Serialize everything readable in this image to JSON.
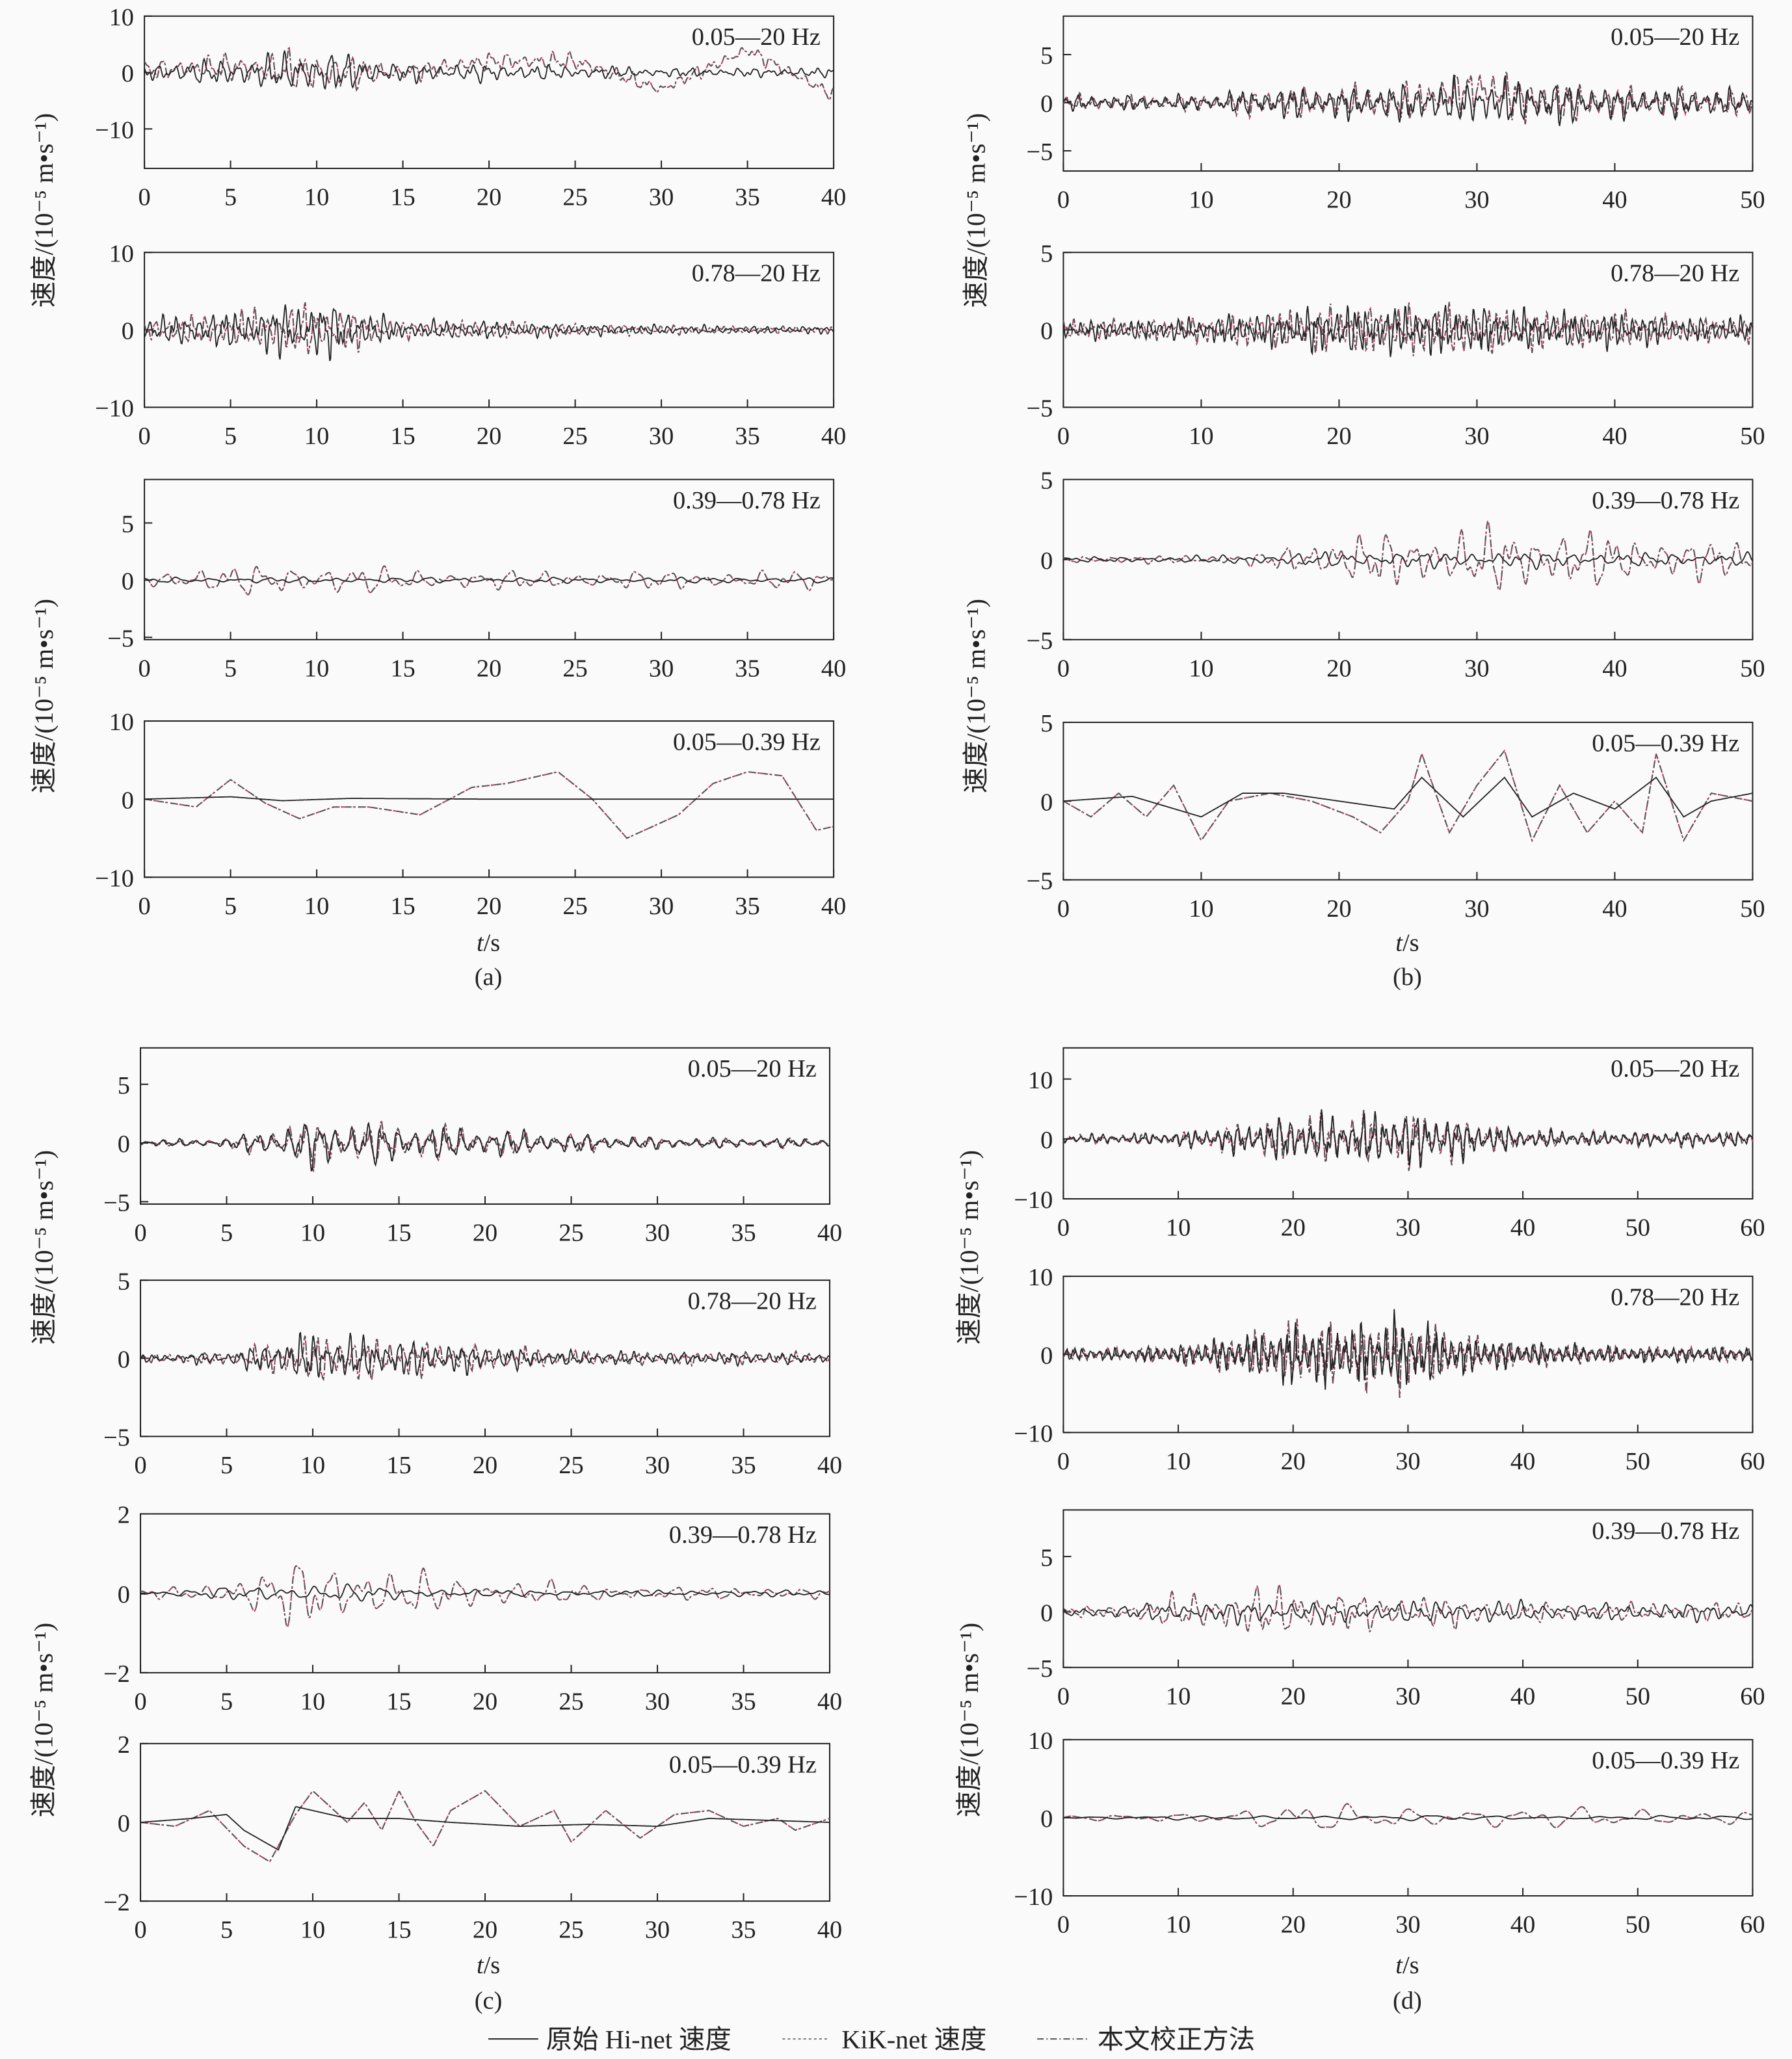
{
  "legend": [
    {
      "label": "原始 Hi-net 速度",
      "style": "solid",
      "color": "#222222"
    },
    {
      "label": "KiK-net 速度",
      "style": "dotted",
      "color": "#d0306a"
    },
    {
      "label": "本文校正方法",
      "style": "dash-dot",
      "color": "#555555"
    }
  ],
  "ylabel": "速度/(10⁻⁵ m•s⁻¹)",
  "xlabel_italic": "t",
  "xlabel_unit": "/s",
  "chart_data": [
    {
      "group": "(a)",
      "type": "line",
      "band": "0.05—20 Hz",
      "xlim": [
        0,
        40
      ],
      "ylim": [
        -17,
        10
      ],
      "xticks": [
        0,
        5,
        10,
        15,
        20,
        25,
        30,
        35,
        40
      ],
      "yticks": [
        10,
        0,
        -10
      ],
      "ytick_labels": [
        "10",
        "0",
        "−10"
      ],
      "hinet": {
        "envelope": [
          2,
          3,
          5,
          2,
          2,
          1.5,
          1,
          1,
          1
        ]
      },
      "kiknet": {
        "envelope": [
          2,
          3,
          5,
          2,
          2,
          2,
          1.5,
          1.5,
          1.5
        ],
        "trend": [
          0.5,
          1,
          0,
          0,
          2,
          2,
          -3,
          4,
          -4
        ]
      }
    },
    {
      "group": "(a)",
      "type": "line",
      "band": "0.78—20 Hz",
      "xlim": [
        0,
        40
      ],
      "ylim": [
        -10,
        10
      ],
      "xticks": [
        0,
        5,
        10,
        15,
        20,
        25,
        30,
        35,
        40
      ],
      "yticks": [
        10,
        0,
        -10
      ],
      "ytick_labels": [
        "10",
        "0",
        "−10"
      ],
      "hinet": {
        "envelope": [
          2,
          3,
          5,
          1.5,
          1.5,
          1,
          0.8,
          0.6,
          0.6
        ]
      },
      "kiknet": {
        "envelope": [
          1.8,
          2.7,
          4.5,
          1.4,
          1.4,
          1,
          0.8,
          0.6,
          0.6
        ]
      }
    },
    {
      "group": "(a)",
      "type": "line",
      "band": "0.39—0.78 Hz",
      "xlim": [
        0,
        40
      ],
      "ylim": [
        -5.2,
        8.8
      ],
      "xticks": [
        0,
        5,
        10,
        15,
        20,
        25,
        30,
        35,
        40
      ],
      "yticks": [
        5,
        0,
        -5
      ],
      "ytick_labels": [
        "5",
        "0",
        "−5"
      ],
      "hinet": {
        "envelope": [
          0.3,
          0.3,
          0.3,
          0.3,
          0.3,
          0.3,
          0.3,
          0.3,
          0.3
        ]
      },
      "kiknet": {
        "envelope": [
          1,
          1.5,
          1.8,
          1.2,
          1,
          1,
          1,
          1,
          1
        ]
      }
    },
    {
      "group": "(a)",
      "type": "line",
      "band": "0.05—0.39 Hz",
      "xlim": [
        0,
        40
      ],
      "ylim": [
        -10,
        10
      ],
      "xticks": [
        0,
        5,
        10,
        15,
        20,
        25,
        30,
        35,
        40
      ],
      "yticks": [
        10,
        0,
        -10
      ],
      "ytick_labels": [
        "10",
        "0",
        "−10"
      ],
      "hinet": {
        "points": [
          [
            0,
            0
          ],
          [
            5,
            0.3
          ],
          [
            8,
            -0.2
          ],
          [
            12,
            0.1
          ],
          [
            20,
            0
          ],
          [
            30,
            0
          ],
          [
            40,
            0
          ]
        ]
      },
      "kiknet": {
        "points": [
          [
            0,
            0
          ],
          [
            3,
            -1
          ],
          [
            5,
            2.5
          ],
          [
            7,
            -0.5
          ],
          [
            9,
            -2.5
          ],
          [
            11,
            -1
          ],
          [
            13,
            -1
          ],
          [
            16,
            -2
          ],
          [
            19,
            1.5
          ],
          [
            21,
            2
          ],
          [
            24,
            3.5
          ],
          [
            26,
            0
          ],
          [
            28,
            -5
          ],
          [
            31,
            -2
          ],
          [
            33,
            2
          ],
          [
            35,
            3.5
          ],
          [
            37,
            3
          ],
          [
            39,
            -4
          ],
          [
            40,
            -3.5
          ]
        ]
      }
    },
    {
      "group": "(b)",
      "type": "line",
      "band": "0.05—20 Hz",
      "xlim": [
        0,
        50
      ],
      "ylim": [
        -7.1,
        9
      ],
      "xticks": [
        0,
        10,
        20,
        30,
        40,
        50
      ],
      "yticks": [
        5,
        0,
        -5
      ],
      "ytick_labels": [
        "5",
        "0",
        "−5"
      ],
      "hinet": {
        "envelope": [
          1,
          1,
          1,
          2,
          2,
          2.5,
          3,
          3,
          2,
          2,
          1.5
        ]
      },
      "kiknet": {
        "envelope": [
          1,
          1,
          1,
          2,
          2,
          2.5,
          3,
          3,
          2,
          2,
          1.5
        ],
        "trend": [
          0,
          0,
          0,
          0,
          0,
          0,
          1.5,
          0,
          0,
          0,
          0
        ]
      }
    },
    {
      "group": "(b)",
      "type": "line",
      "band": "0.78—20 Hz",
      "xlim": [
        0,
        50
      ],
      "ylim": [
        -5,
        5
      ],
      "xticks": [
        0,
        10,
        20,
        30,
        40,
        50
      ],
      "yticks": [
        5,
        0,
        -5
      ],
      "ytick_labels": [
        "5",
        "0",
        "−5"
      ],
      "hinet": {
        "envelope": [
          0.8,
          0.8,
          1,
          1.5,
          2,
          2,
          2,
          1.5,
          1.5,
          1,
          1
        ]
      },
      "kiknet": {
        "envelope": [
          0.8,
          0.8,
          1,
          1.5,
          2,
          2,
          2,
          1.5,
          1.5,
          1,
          1
        ]
      }
    },
    {
      "group": "(b)",
      "type": "line",
      "band": "0.39—0.78 Hz",
      "xlim": [
        0,
        50
      ],
      "ylim": [
        -5,
        5
      ],
      "xticks": [
        0,
        10,
        20,
        30,
        40,
        50
      ],
      "yticks": [
        5,
        0,
        -5
      ],
      "ytick_labels": [
        "5",
        "0",
        "−5"
      ],
      "hinet": {
        "envelope": [
          0.2,
          0.2,
          0.3,
          0.4,
          0.6,
          0.6,
          0.6,
          0.6,
          0.5,
          0.5,
          0.5
        ]
      },
      "kiknet": {
        "envelope": [
          0.3,
          0.3,
          0.3,
          0.6,
          2,
          2,
          2.5,
          2.5,
          2,
          1.5,
          1.5
        ]
      }
    },
    {
      "group": "(b)",
      "type": "line",
      "band": "0.05—0.39 Hz",
      "xlim": [
        0,
        50
      ],
      "ylim": [
        -5,
        5
      ],
      "xticks": [
        0,
        10,
        20,
        30,
        40,
        50
      ],
      "yticks": [
        5,
        0,
        -5
      ],
      "ytick_labels": [
        "5",
        "0",
        "−5"
      ],
      "hinet": {
        "points": [
          [
            0,
            0
          ],
          [
            5,
            0.3
          ],
          [
            10,
            -1
          ],
          [
            13,
            0.5
          ],
          [
            16,
            0.5
          ],
          [
            20,
            0
          ],
          [
            24,
            -0.5
          ],
          [
            26,
            1.5
          ],
          [
            29,
            -1
          ],
          [
            32,
            1.5
          ],
          [
            34,
            -1
          ],
          [
            37,
            0.5
          ],
          [
            40,
            -0.5
          ],
          [
            43,
            1.5
          ],
          [
            45,
            -1
          ],
          [
            47,
            0
          ],
          [
            50,
            0.5
          ]
        ]
      },
      "kiknet": {
        "points": [
          [
            0,
            0
          ],
          [
            2,
            -1
          ],
          [
            4,
            0.5
          ],
          [
            6,
            -1
          ],
          [
            8,
            1
          ],
          [
            10,
            -2.5
          ],
          [
            12,
            0
          ],
          [
            15,
            0.5
          ],
          [
            18,
            0
          ],
          [
            21,
            -1
          ],
          [
            23,
            -2
          ],
          [
            25,
            0
          ],
          [
            26,
            3
          ],
          [
            28,
            -2
          ],
          [
            30,
            1
          ],
          [
            32,
            3.2
          ],
          [
            34,
            -2.5
          ],
          [
            36,
            1
          ],
          [
            38,
            -2
          ],
          [
            40,
            0
          ],
          [
            42,
            -2
          ],
          [
            43,
            3
          ],
          [
            45,
            -2.5
          ],
          [
            47,
            0.5
          ],
          [
            50,
            0
          ]
        ]
      }
    },
    {
      "group": "(c)",
      "type": "line",
      "band": "0.05—20 Hz",
      "xlim": [
        0,
        40
      ],
      "ylim": [
        -5.2,
        8.1
      ],
      "xticks": [
        0,
        5,
        10,
        15,
        20,
        25,
        30,
        35,
        40
      ],
      "yticks": [
        5,
        0,
        -5
      ],
      "ytick_labels": [
        "5",
        "0",
        "−5"
      ],
      "hinet": {
        "envelope": [
          0.3,
          0.5,
          2.5,
          2,
          1.5,
          1,
          0.6,
          0.5,
          0.5
        ]
      },
      "kiknet": {
        "envelope": [
          0.3,
          0.5,
          2.5,
          2,
          1.5,
          1,
          0.6,
          0.5,
          0.5
        ]
      }
    },
    {
      "group": "(c)",
      "type": "line",
      "band": "0.78—20 Hz",
      "xlim": [
        0,
        40
      ],
      "ylim": [
        -5,
        5
      ],
      "xticks": [
        0,
        5,
        10,
        15,
        20,
        25,
        30,
        35,
        40
      ],
      "yticks": [
        5,
        0,
        -5
      ],
      "ytick_labels": [
        "5",
        "0",
        "−5"
      ],
      "hinet": {
        "envelope": [
          0.3,
          0.5,
          2,
          1.5,
          1,
          0.6,
          0.5,
          0.5,
          0.4
        ]
      },
      "kiknet": {
        "envelope": [
          0.3,
          0.5,
          2,
          1.5,
          1,
          0.6,
          0.5,
          0.5,
          0.4
        ]
      }
    },
    {
      "group": "(c)",
      "type": "line",
      "band": "0.39—0.78 Hz",
      "xlim": [
        0,
        40
      ],
      "ylim": [
        -2,
        2
      ],
      "xticks": [
        0,
        5,
        10,
        15,
        20,
        25,
        30,
        35,
        40
      ],
      "yticks": [
        2,
        0,
        -2
      ],
      "ytick_labels": [
        "2",
        "0",
        "−2"
      ],
      "hinet": {
        "envelope": [
          0.05,
          0.2,
          0.3,
          0.2,
          0.1,
          0.1,
          0.1,
          0.1,
          0.1
        ]
      },
      "kiknet": {
        "envelope": [
          0.1,
          0.4,
          1.2,
          0.7,
          0.5,
          0.3,
          0.2,
          0.2,
          0.15
        ]
      }
    },
    {
      "group": "(c)",
      "type": "line",
      "band": "0.05—0.39 Hz",
      "xlim": [
        0,
        40
      ],
      "ylim": [
        -2,
        2
      ],
      "xticks": [
        0,
        5,
        10,
        15,
        20,
        25,
        30,
        35,
        40
      ],
      "yticks": [
        2,
        0,
        -2
      ],
      "ytick_labels": [
        "2",
        "0",
        "−2"
      ],
      "hinet": {
        "points": [
          [
            0,
            0
          ],
          [
            3,
            0.1
          ],
          [
            5,
            0.2
          ],
          [
            6,
            -0.2
          ],
          [
            8,
            -0.7
          ],
          [
            9,
            0.4
          ],
          [
            10,
            0.3
          ],
          [
            12,
            0.1
          ],
          [
            15,
            0.1
          ],
          [
            18,
            0
          ],
          [
            22,
            -0.1
          ],
          [
            26,
            -0.05
          ],
          [
            30,
            -0.1
          ],
          [
            33,
            0.1
          ],
          [
            40,
            0
          ]
        ]
      },
      "kiknet": {
        "points": [
          [
            0,
            0
          ],
          [
            2,
            -0.1
          ],
          [
            4,
            0.3
          ],
          [
            6,
            -0.6
          ],
          [
            7.5,
            -1
          ],
          [
            9,
            0.2
          ],
          [
            10,
            0.8
          ],
          [
            12,
            0
          ],
          [
            13,
            0.5
          ],
          [
            14,
            -0.2
          ],
          [
            15,
            0.8
          ],
          [
            16,
            0
          ],
          [
            17,
            -0.6
          ],
          [
            18,
            0.3
          ],
          [
            20,
            0.8
          ],
          [
            22,
            -0.1
          ],
          [
            24,
            0.3
          ],
          [
            25,
            -0.5
          ],
          [
            27,
            0.3
          ],
          [
            29,
            -0.4
          ],
          [
            31,
            0.2
          ],
          [
            33,
            0.3
          ],
          [
            35,
            -0.1
          ],
          [
            37,
            0.1
          ],
          [
            38,
            -0.2
          ],
          [
            40,
            0.1
          ]
        ]
      }
    },
    {
      "group": "(d)",
      "type": "line",
      "band": "0.05—20 Hz",
      "xlim": [
        0,
        60
      ],
      "ylim": [
        -10,
        15.2
      ],
      "xticks": [
        0,
        10,
        20,
        30,
        40,
        50,
        60
      ],
      "yticks": [
        10,
        0,
        -10
      ],
      "ytick_labels": [
        "10",
        "0",
        "−10"
      ],
      "hinet": {
        "envelope": [
          1,
          1,
          1.5,
          3,
          5,
          5,
          6,
          4,
          2,
          1.5,
          1.5,
          1.5,
          1.5
        ]
      },
      "kiknet": {
        "envelope": [
          1,
          1,
          1.5,
          3,
          5,
          5,
          6,
          4,
          2,
          1.5,
          1.5,
          1.5,
          1.5
        ]
      }
    },
    {
      "group": "(d)",
      "type": "line",
      "band": "0.78—20 Hz",
      "xlim": [
        0,
        60
      ],
      "ylim": [
        -10,
        10
      ],
      "xticks": [
        0,
        10,
        20,
        30,
        40,
        50,
        60
      ],
      "yticks": [
        10,
        0,
        -10
      ],
      "ytick_labels": [
        "10",
        "0",
        "−10"
      ],
      "hinet": {
        "envelope": [
          1,
          1,
          1.5,
          3,
          5,
          5,
          6,
          3,
          2,
          1.5,
          1.2,
          1.2,
          1.2
        ]
      },
      "kiknet": {
        "envelope": [
          1,
          1,
          1.5,
          3,
          5,
          5,
          6,
          3,
          2,
          1.5,
          1.2,
          1.2,
          1.2
        ]
      }
    },
    {
      "group": "(d)",
      "type": "line",
      "band": "0.39—0.78 Hz",
      "xlim": [
        0,
        60
      ],
      "ylim": [
        -5,
        9.2
      ],
      "xticks": [
        0,
        10,
        20,
        30,
        40,
        50,
        60
      ],
      "yticks": [
        5,
        0,
        -5
      ],
      "ytick_labels": [
        "5",
        "0",
        "−5"
      ],
      "hinet": {
        "envelope": [
          0.5,
          0.8,
          1,
          1.2,
          1.2,
          1.2,
          1.2,
          1.2,
          1.2,
          1,
          1,
          1,
          1
        ]
      },
      "kiknet": {
        "envelope": [
          0.5,
          0.8,
          2,
          2.5,
          3,
          2,
          2,
          1.5,
          1.2,
          1,
          1,
          1,
          1
        ]
      }
    },
    {
      "group": "(d)",
      "type": "line",
      "band": "0.05—0.39 Hz",
      "xlim": [
        0,
        60
      ],
      "ylim": [
        -10,
        10
      ],
      "xticks": [
        0,
        10,
        20,
        30,
        40,
        50,
        60
      ],
      "yticks": [
        10,
        0,
        -10
      ],
      "ytick_labels": [
        "10",
        "0",
        "−10"
      ],
      "hinet": {
        "envelope": [
          0.2,
          0.2,
          0.3,
          0.3,
          0.4,
          0.4,
          0.4,
          0.4,
          0.3,
          0.3,
          0.3,
          0.3,
          0.3
        ]
      },
      "kiknet": {
        "envelope": [
          0.3,
          0.5,
          1,
          1.5,
          2,
          2,
          2,
          2,
          1.5,
          1.5,
          1.5,
          1.5,
          1.5
        ]
      }
    }
  ]
}
